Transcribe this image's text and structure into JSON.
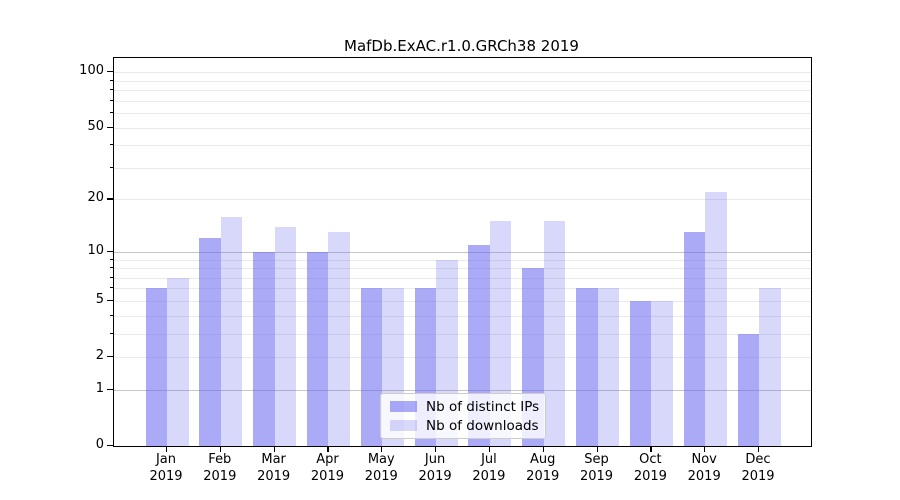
{
  "chart_data": {
    "type": "bar",
    "title": "MafDb.ExAC.r1.0.GRCh38 2019",
    "categories": [
      "Jan 2019",
      "Feb 2019",
      "Mar 2019",
      "Apr 2019",
      "May 2019",
      "Jun 2019",
      "Jul 2019",
      "Aug 2019",
      "Sep 2019",
      "Oct 2019",
      "Nov 2019",
      "Dec 2019"
    ],
    "x_tick_labels": [
      [
        "Jan",
        "2019"
      ],
      [
        "Feb",
        "2019"
      ],
      [
        "Mar",
        "2019"
      ],
      [
        "Apr",
        "2019"
      ],
      [
        "May",
        "2019"
      ],
      [
        "Jun",
        "2019"
      ],
      [
        "Jul",
        "2019"
      ],
      [
        "Aug",
        "2019"
      ],
      [
        "Sep",
        "2019"
      ],
      [
        "Oct",
        "2019"
      ],
      [
        "Nov",
        "2019"
      ],
      [
        "Dec",
        "2019"
      ]
    ],
    "series": [
      {
        "name": "Nb of distinct IPs",
        "color": "rgba(100,100,240,0.55)",
        "values": [
          6,
          12,
          10,
          10,
          6,
          6,
          11,
          8,
          6,
          5,
          13,
          3
        ]
      },
      {
        "name": "Nb of downloads",
        "color": "rgba(100,100,240,0.25)",
        "values": [
          7,
          16,
          14,
          13,
          6,
          9,
          15,
          15,
          6,
          5,
          22,
          6
        ]
      }
    ],
    "yscale": "log1p",
    "ylim": [
      0,
      119
    ],
    "y_axis_ticks": [
      0,
      1,
      2,
      5,
      10,
      20,
      50,
      100
    ],
    "y_major_gridlines": [
      1,
      10
    ],
    "y_minor_gridlines": [
      2,
      3,
      4,
      5,
      6,
      7,
      8,
      9,
      20,
      30,
      40,
      50,
      60,
      70,
      80,
      90,
      100
    ],
    "grid": true,
    "legend_position": "lower center",
    "axis_color": "#000000",
    "major_grid_color": "#c6c6c6",
    "minor_grid_color": "#eaeaea"
  }
}
